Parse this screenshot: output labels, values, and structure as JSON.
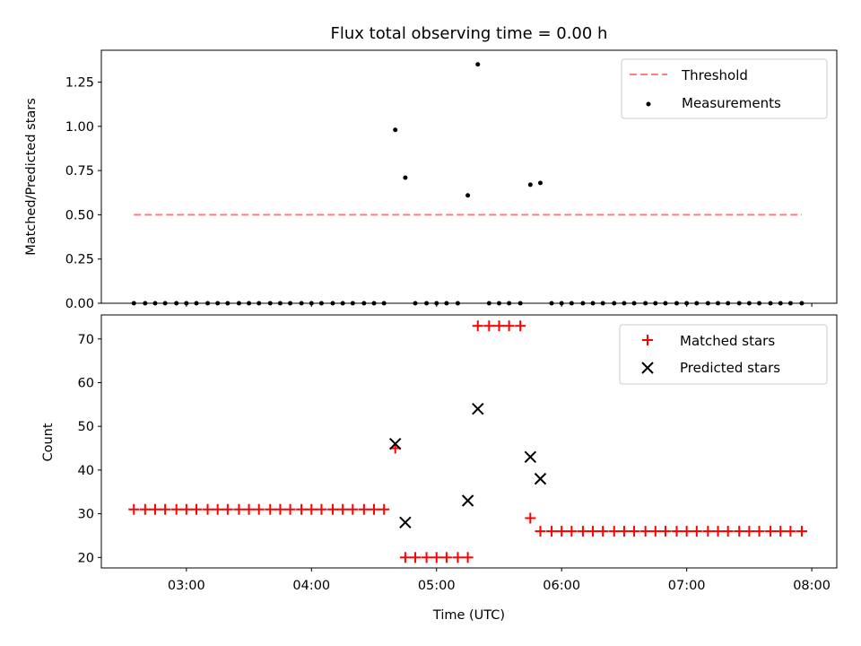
{
  "chart_data": [
    {
      "type": "scatter",
      "title": "Flux total observing time = 0.00 h",
      "xlabel": "",
      "ylabel": "Matched/Predicted stars",
      "xlim": [
        2.32,
        8.2
      ],
      "ylim": [
        0.0,
        1.43
      ],
      "yticks": [
        "0.00",
        "0.25",
        "0.50",
        "0.75",
        "1.00",
        "1.25"
      ],
      "xticks": [
        "03:00",
        "04:00",
        "05:00",
        "06:00",
        "07:00",
        "08:00"
      ],
      "legend_position": "upper right",
      "threshold": {
        "name": "Threshold",
        "value": 0.5,
        "x_range": [
          2.58,
          7.92
        ],
        "color": "#ff7f7f"
      },
      "series": [
        {
          "name": "Measurements",
          "color": "#000000",
          "x": [
            2.58,
            2.67,
            2.75,
            2.83,
            2.92,
            3.0,
            3.08,
            3.17,
            3.25,
            3.33,
            3.42,
            3.5,
            3.58,
            3.67,
            3.75,
            3.83,
            3.92,
            4.0,
            4.08,
            4.17,
            4.25,
            4.33,
            4.42,
            4.5,
            4.58,
            4.67,
            4.75,
            4.83,
            4.92,
            5.0,
            5.08,
            5.17,
            5.25,
            5.33,
            5.42,
            5.5,
            5.58,
            5.67,
            5.75,
            5.83,
            5.92,
            6.0,
            6.08,
            6.17,
            6.25,
            6.33,
            6.42,
            6.5,
            6.58,
            6.67,
            6.75,
            6.83,
            6.92,
            7.0,
            7.08,
            7.17,
            7.25,
            7.33,
            7.42,
            7.5,
            7.58,
            7.67,
            7.75,
            7.83,
            7.92
          ],
          "y": [
            0,
            0,
            0,
            0,
            0,
            0,
            0,
            0,
            0,
            0,
            0,
            0,
            0,
            0,
            0,
            0,
            0,
            0,
            0,
            0,
            0,
            0,
            0,
            0,
            0,
            0.98,
            0.71,
            0,
            0,
            0,
            0,
            0,
            0.61,
            1.35,
            0,
            0,
            0,
            0,
            0.67,
            0.68,
            0,
            0,
            0,
            0,
            0,
            0,
            0,
            0,
            0,
            0,
            0,
            0,
            0,
            0,
            0,
            0,
            0,
            0,
            0,
            0,
            0,
            0,
            0,
            0,
            0
          ]
        }
      ]
    },
    {
      "type": "scatter",
      "title": "",
      "xlabel": "Time (UTC)",
      "ylabel": "Count",
      "xlim": [
        2.32,
        8.2
      ],
      "ylim": [
        17.6,
        75.5
      ],
      "yticks": [
        "20",
        "30",
        "40",
        "50",
        "60",
        "70"
      ],
      "xticks": [
        "03:00",
        "04:00",
        "05:00",
        "06:00",
        "07:00",
        "08:00"
      ],
      "legend_position": "upper right",
      "series": [
        {
          "name": "Matched stars",
          "color": "#ff0000",
          "marker": "+",
          "x": [
            2.58,
            2.67,
            2.75,
            2.83,
            2.92,
            3.0,
            3.08,
            3.17,
            3.25,
            3.33,
            3.42,
            3.5,
            3.58,
            3.67,
            3.75,
            3.83,
            3.92,
            4.0,
            4.08,
            4.17,
            4.25,
            4.33,
            4.42,
            4.5,
            4.58,
            4.67,
            4.75,
            4.83,
            4.92,
            5.0,
            5.08,
            5.17,
            5.25,
            5.33,
            5.42,
            5.5,
            5.58,
            5.67,
            5.75,
            5.83,
            5.92,
            6.0,
            6.08,
            6.17,
            6.25,
            6.33,
            6.42,
            6.5,
            6.58,
            6.67,
            6.75,
            6.83,
            6.92,
            7.0,
            7.08,
            7.17,
            7.25,
            7.33,
            7.42,
            7.5,
            7.58,
            7.67,
            7.75,
            7.83,
            7.92
          ],
          "y": [
            31,
            31,
            31,
            31,
            31,
            31,
            31,
            31,
            31,
            31,
            31,
            31,
            31,
            31,
            31,
            31,
            31,
            31,
            31,
            31,
            31,
            31,
            31,
            31,
            31,
            45,
            20,
            20,
            20,
            20,
            20,
            20,
            20,
            73,
            73,
            73,
            73,
            73,
            29,
            26,
            26,
            26,
            26,
            26,
            26,
            26,
            26,
            26,
            26,
            26,
            26,
            26,
            26,
            26,
            26,
            26,
            26,
            26,
            26,
            26,
            26,
            26,
            26,
            26,
            26
          ]
        },
        {
          "name": "Predicted stars",
          "color": "#000000",
          "marker": "x",
          "x": [
            4.67,
            4.75,
            5.25,
            5.33,
            5.75,
            5.83
          ],
          "y": [
            46,
            28,
            33,
            54,
            43,
            38
          ]
        }
      ]
    }
  ]
}
